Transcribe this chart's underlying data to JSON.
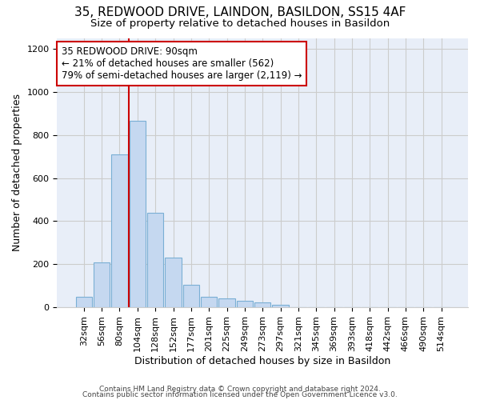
{
  "title1": "35, REDWOOD DRIVE, LAINDON, BASILDON, SS15 4AF",
  "title2": "Size of property relative to detached houses in Basildon",
  "xlabel": "Distribution of detached houses by size in Basildon",
  "ylabel": "Number of detached properties",
  "categories": [
    "32sqm",
    "56sqm",
    "80sqm",
    "104sqm",
    "128sqm",
    "152sqm",
    "177sqm",
    "201sqm",
    "225sqm",
    "249sqm",
    "273sqm",
    "297sqm",
    "321sqm",
    "345sqm",
    "369sqm",
    "393sqm",
    "418sqm",
    "442sqm",
    "466sqm",
    "490sqm",
    "514sqm"
  ],
  "values": [
    48,
    210,
    710,
    865,
    438,
    232,
    105,
    48,
    40,
    30,
    22,
    12,
    0,
    0,
    0,
    0,
    0,
    0,
    0,
    0,
    0
  ],
  "bar_color": "#c5d8f0",
  "bar_edge_color": "#7aafd4",
  "vline_bin_index": 2,
  "annotation_text": "35 REDWOOD DRIVE: 90sqm\n← 21% of detached houses are smaller (562)\n79% of semi-detached houses are larger (2,119) →",
  "annotation_box_color": "#ffffff",
  "annotation_box_edge_color": "#cc0000",
  "vline_color": "#cc0000",
  "grid_color": "#cccccc",
  "plot_bg_color": "#e8eef8",
  "footnote1": "Contains HM Land Registry data © Crown copyright and database right 2024.",
  "footnote2": "Contains public sector information licensed under the Open Government Licence v3.0.",
  "ylim": [
    0,
    1250
  ],
  "title1_fontsize": 11,
  "title2_fontsize": 9.5,
  "xlabel_fontsize": 9,
  "ylabel_fontsize": 9,
  "tick_fontsize": 8,
  "footnote_fontsize": 6.5,
  "annotation_fontsize": 8.5
}
